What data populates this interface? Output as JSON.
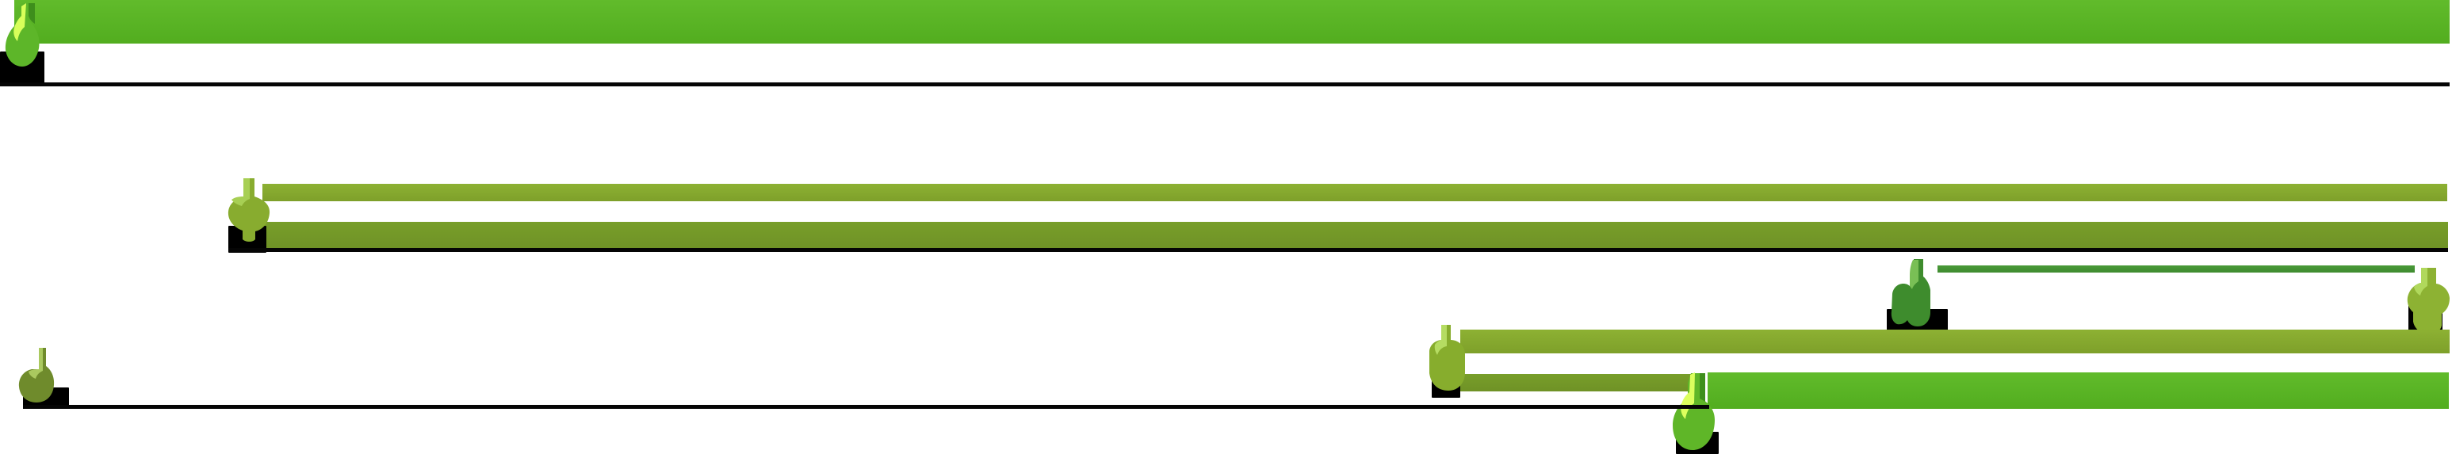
{
  "colors": {
    "bright_green": "#58b323",
    "olive_green": "#86aa2f",
    "dark_olive": "#719326",
    "forest_green": "#3f8b30",
    "black_line": "#050505"
  }
}
